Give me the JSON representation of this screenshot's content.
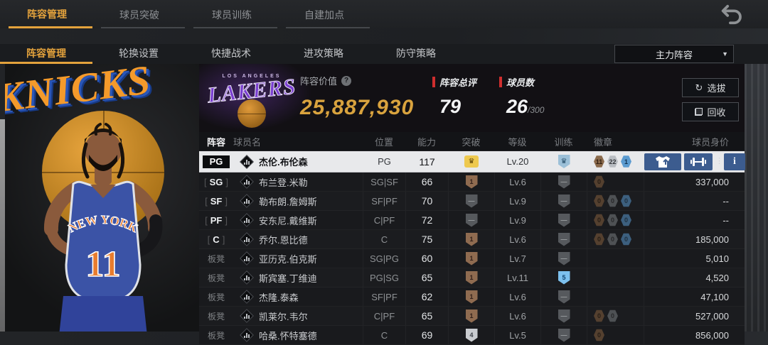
{
  "nav": {
    "back_icon": "return-arrow",
    "tabs": [
      {
        "label": "阵容管理",
        "active": true
      },
      {
        "label": "球员突破",
        "active": false
      },
      {
        "label": "球员训练",
        "active": false
      },
      {
        "label": "自建加点",
        "active": false
      }
    ]
  },
  "subnav": {
    "tabs": [
      {
        "label": "阵容管理",
        "active": true
      },
      {
        "label": "轮换设置",
        "active": false
      },
      {
        "label": "快捷战术",
        "active": false
      },
      {
        "label": "进攻策略",
        "active": false
      },
      {
        "label": "防守策略",
        "active": false
      }
    ],
    "lineup_dropdown": {
      "value": "主力阵容",
      "caret_icon": "▼"
    }
  },
  "team": {
    "logo": {
      "top_text": "LOS ANGELES",
      "main_text": "LAKERS"
    },
    "value_label": "阵容价值",
    "help_icon": "?",
    "value": "25,887,930",
    "rating_label": "阵容总评",
    "rating": "79",
    "count_label": "球员数",
    "count": "26",
    "count_max": "/300"
  },
  "actions": {
    "select_label": "选拔",
    "select_icon": "refresh",
    "recycle_label": "回收",
    "recycle_icon": "stacked-cards"
  },
  "player_art": {
    "backdrop_text": "KNICKS",
    "jersey_text": "NEW YORK",
    "jersey_number": "11"
  },
  "table": {
    "headers": [
      "阵容",
      "球员名",
      "位置",
      "能力",
      "突破",
      "等级",
      "训练",
      "徽章",
      "球员身价"
    ],
    "row_actions": {
      "equip_icon": "jersey-up",
      "train_icon": "dumbbell",
      "more_icon": "⋮",
      "info_icon": "i"
    },
    "rows": [
      {
        "slot": "PG",
        "slot_style": "solid",
        "name": "杰伦.布伦森",
        "pos": "PG",
        "ability": "117",
        "breakthrough": {
          "tier": "gold",
          "glyph": "crown"
        },
        "level": "Lv.20",
        "training": {
          "tier": "bluelight",
          "glyph": "crown"
        },
        "badges": [
          {
            "tier": "bronze",
            "value": "11"
          },
          {
            "tier": "silver",
            "value": "22"
          },
          {
            "tier": "blue",
            "value": "1"
          }
        ],
        "price": "",
        "selected": true
      },
      {
        "slot": "SG",
        "slot_style": "bracket",
        "name": "布兰登.米勒",
        "pos": "SG|SF",
        "ability": "66",
        "breakthrough": {
          "tier": "bronze",
          "glyph": "1"
        },
        "level": "Lv.6",
        "training": {
          "tier": "gray",
          "glyph": "—"
        },
        "badges": [
          {
            "tier": "bronzed",
            "value": "0"
          }
        ],
        "price": "337,000",
        "selected": false
      },
      {
        "slot": "SF",
        "slot_style": "bracket",
        "name": "勒布朗.詹姆斯",
        "pos": "SF|PF",
        "ability": "70",
        "breakthrough": {
          "tier": "gray",
          "glyph": "—"
        },
        "level": "Lv.9",
        "training": {
          "tier": "gray",
          "glyph": "—"
        },
        "badges": [
          {
            "tier": "bronzed",
            "value": "0"
          },
          {
            "tier": "grayd",
            "value": "0"
          },
          {
            "tier": "blued",
            "value": "0"
          }
        ],
        "price": "--",
        "selected": false
      },
      {
        "slot": "PF",
        "slot_style": "bracket",
        "name": "安东尼.戴维斯",
        "pos": "C|PF",
        "ability": "72",
        "breakthrough": {
          "tier": "gray",
          "glyph": "—"
        },
        "level": "Lv.9",
        "training": {
          "tier": "gray",
          "glyph": "—"
        },
        "badges": [
          {
            "tier": "bronzed",
            "value": "0"
          },
          {
            "tier": "grayd",
            "value": "0"
          },
          {
            "tier": "blued",
            "value": "0"
          }
        ],
        "price": "--",
        "selected": false
      },
      {
        "slot": "C",
        "slot_style": "bracket",
        "name": "乔尔.恩比德",
        "pos": "C",
        "ability": "75",
        "breakthrough": {
          "tier": "bronze",
          "glyph": "1"
        },
        "level": "Lv.6",
        "training": {
          "tier": "gray",
          "glyph": "—"
        },
        "badges": [
          {
            "tier": "bronzed",
            "value": "0"
          },
          {
            "tier": "grayd",
            "value": "0"
          },
          {
            "tier": "blued",
            "value": "0"
          }
        ],
        "price": "185,000",
        "selected": false
      },
      {
        "slot": "板凳",
        "slot_style": "bench",
        "name": "亚历克.伯克斯",
        "pos": "SG|PG",
        "ability": "60",
        "breakthrough": {
          "tier": "bronze",
          "glyph": "1"
        },
        "level": "Lv.7",
        "training": {
          "tier": "gray",
          "glyph": "—"
        },
        "badges": [],
        "price": "5,010",
        "selected": false
      },
      {
        "slot": "板凳",
        "slot_style": "bench",
        "name": "斯宾塞.丁维迪",
        "pos": "PG|SG",
        "ability": "65",
        "breakthrough": {
          "tier": "bronze",
          "glyph": "1"
        },
        "level": "Lv.11",
        "training": {
          "tier": "bluebright",
          "glyph": "5"
        },
        "badges": [],
        "price": "4,520",
        "selected": false
      },
      {
        "slot": "板凳",
        "slot_style": "bench",
        "name": "杰隆.泰森",
        "pos": "SF|PF",
        "ability": "62",
        "breakthrough": {
          "tier": "bronze",
          "glyph": "1"
        },
        "level": "Lv.6",
        "training": {
          "tier": "gray",
          "glyph": "—"
        },
        "badges": [],
        "price": "47,100",
        "selected": false
      },
      {
        "slot": "板凳",
        "slot_style": "bench",
        "name": "凯莱尔.韦尔",
        "pos": "C|PF",
        "ability": "65",
        "breakthrough": {
          "tier": "bronze",
          "glyph": "1"
        },
        "level": "Lv.6",
        "training": {
          "tier": "gray",
          "glyph": "—"
        },
        "badges": [
          {
            "tier": "bronzed",
            "value": "0"
          },
          {
            "tier": "grayd",
            "value": "0"
          }
        ],
        "price": "527,000",
        "selected": false
      },
      {
        "slot": "板凳",
        "slot_style": "bench",
        "name": "哈桑.怀特塞德",
        "pos": "C",
        "ability": "69",
        "breakthrough": {
          "tier": "silver",
          "glyph": "4"
        },
        "level": "Lv.5",
        "training": {
          "tier": "gray",
          "glyph": "—"
        },
        "badges": [
          {
            "tier": "bronzed",
            "value": "0"
          }
        ],
        "price": "856,000",
        "selected": false
      }
    ]
  },
  "colors": {
    "accent_yellow": "#E3A23C",
    "value_gold": "#D9A33E",
    "alert_red": "#CF2E2E",
    "selected_row": "#E8E9EB",
    "action_blue": "#3C5C8F",
    "lakers_purple": "#7A3FD0",
    "knicks_orange": "#F49A2B",
    "knicks_blue": "#2A56B8"
  }
}
